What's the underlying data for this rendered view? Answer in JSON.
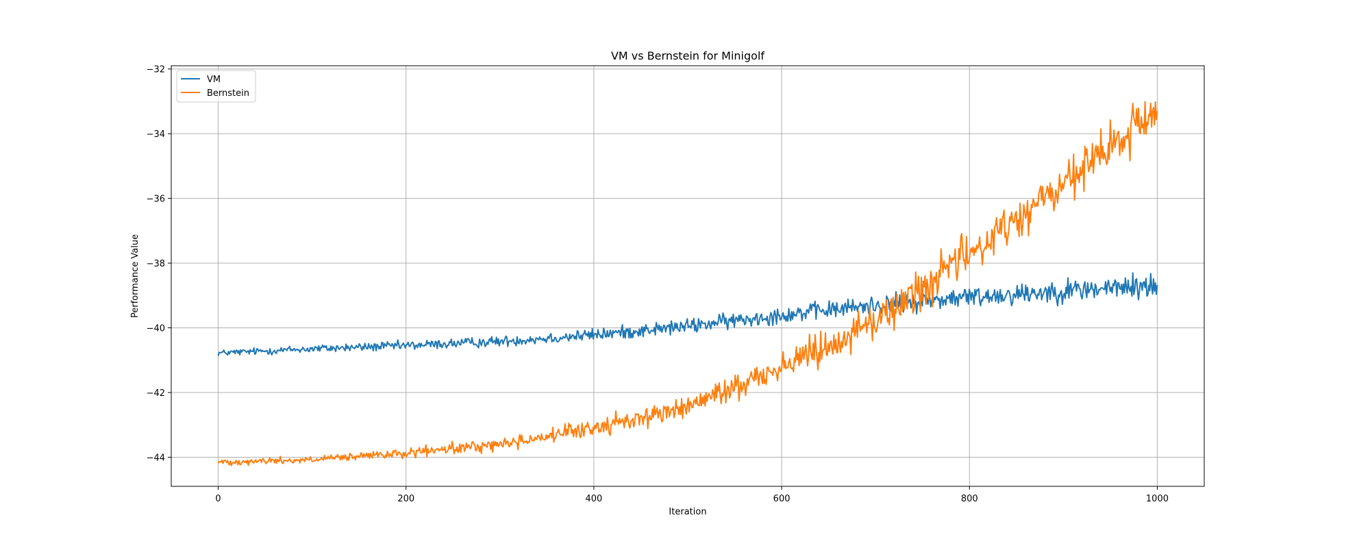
{
  "chart_data": {
    "type": "line",
    "title": "VM vs Bernstein for Minigolf",
    "xlabel": "Iteration",
    "ylabel": "Performance Value",
    "xlim": [
      -50,
      1050
    ],
    "ylim": [
      -44.9,
      -31.9
    ],
    "xticks": [
      0,
      200,
      400,
      600,
      800,
      1000
    ],
    "yticks": [
      -44,
      -42,
      -40,
      -38,
      -36,
      -34,
      -32
    ],
    "xtick_labels": [
      "0",
      "200",
      "400",
      "600",
      "800",
      "1000"
    ],
    "ytick_labels": [
      "−44",
      "−42",
      "−40",
      "−38",
      "−36",
      "−34",
      "−32"
    ],
    "grid": true,
    "legend_position": "top-left",
    "n_points": 1000,
    "series": [
      {
        "name": "VM",
        "color": "#1f77b4",
        "trend_x": [
          0,
          100,
          200,
          300,
          400,
          500,
          600,
          700,
          800,
          900,
          1000
        ],
        "trend_y": [
          -40.78,
          -40.65,
          -40.55,
          -40.42,
          -40.22,
          -39.95,
          -39.6,
          -39.3,
          -39.05,
          -38.85,
          -38.7
        ],
        "noise": [
          0.06,
          0.08,
          0.09,
          0.1,
          0.12,
          0.14,
          0.16,
          0.18,
          0.2,
          0.22,
          0.25
        ]
      },
      {
        "name": "Bernstein",
        "color": "#ff7f0e",
        "trend_x": [
          0,
          100,
          200,
          300,
          400,
          500,
          600,
          700,
          800,
          900,
          1000
        ],
        "trend_y": [
          -44.15,
          -44.08,
          -43.88,
          -43.6,
          -43.1,
          -42.45,
          -41.2,
          -39.8,
          -37.7,
          -35.6,
          -33.3
        ],
        "noise": [
          0.06,
          0.07,
          0.09,
          0.12,
          0.16,
          0.2,
          0.3,
          0.38,
          0.42,
          0.45,
          0.5
        ]
      }
    ]
  }
}
